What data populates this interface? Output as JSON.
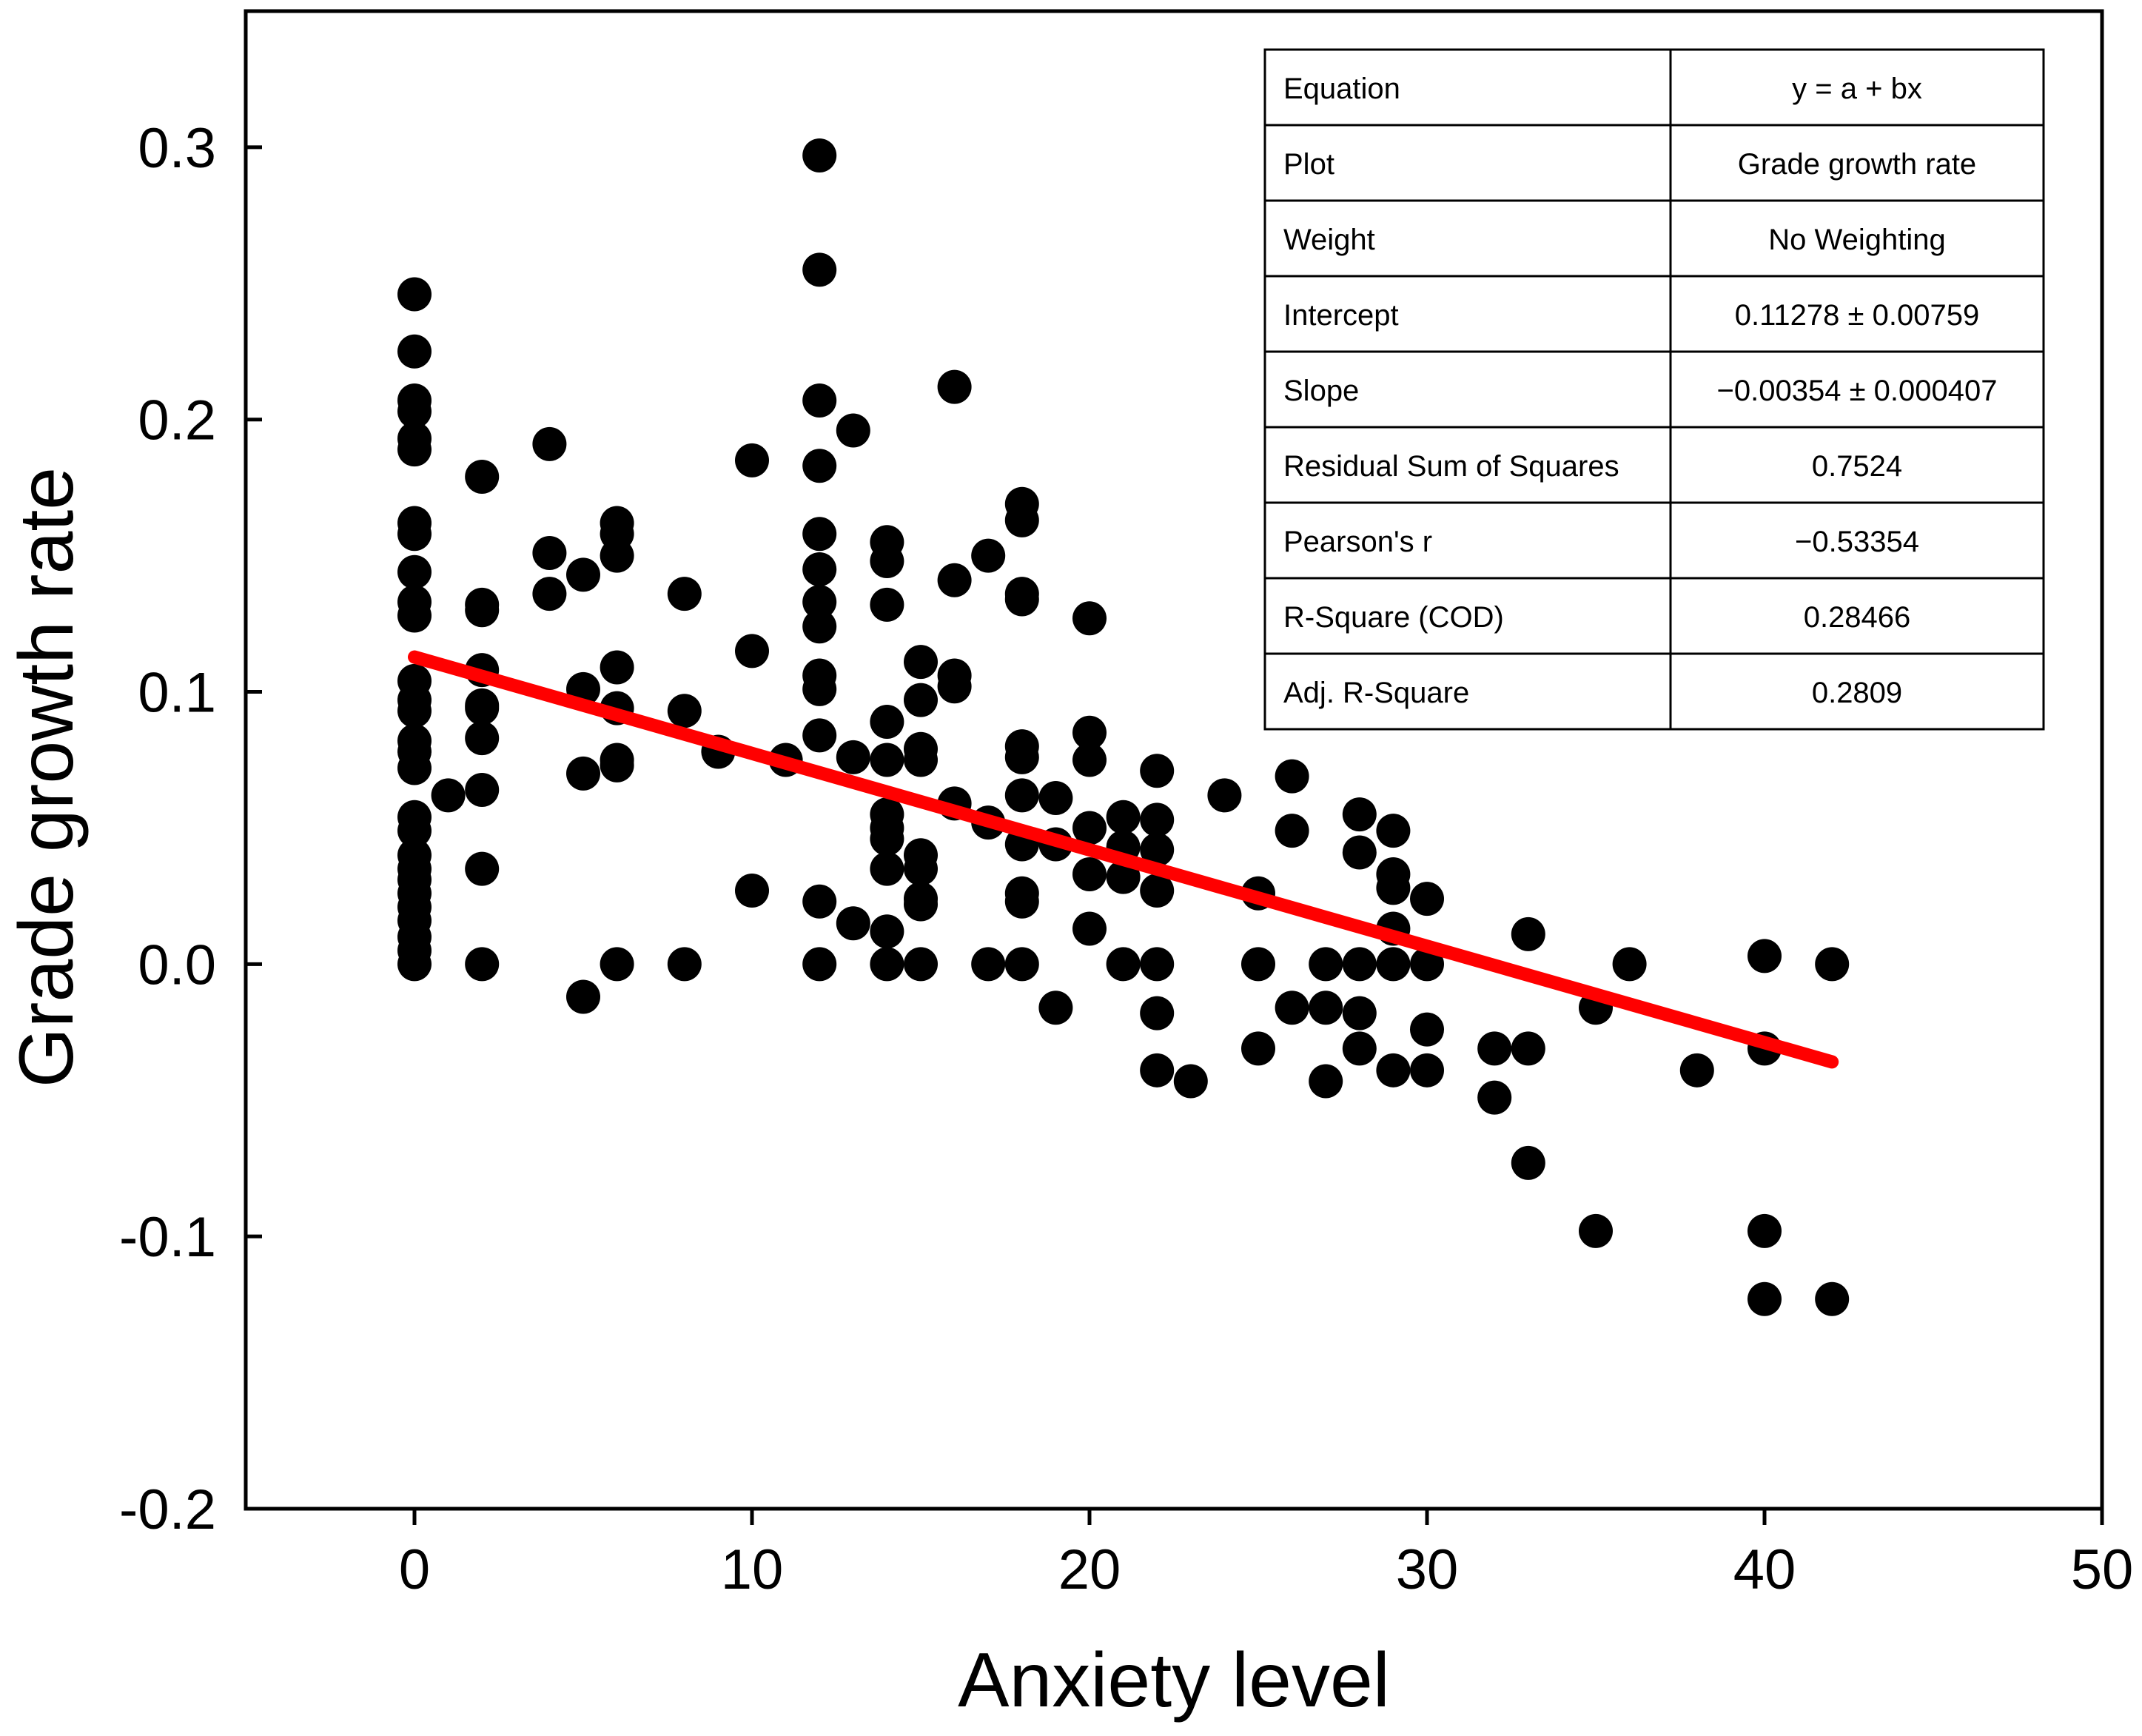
{
  "chart_data": {
    "type": "scatter",
    "xlabel": "Anxiety level",
    "ylabel": "Grade growth rate",
    "xlim": [
      -5,
      50
    ],
    "ylim": [
      -0.2,
      0.35
    ],
    "xticks": [
      "0",
      "10",
      "20",
      "30",
      "40",
      "50"
    ],
    "yticks": [
      "-0.2",
      "-0.1",
      "0.0",
      "0.1",
      "0.2",
      "0.3"
    ],
    "grid": false,
    "marker_color": "#000000",
    "fit_line": {
      "intercept": 0.11278,
      "slope": -0.00354,
      "x_range": [
        0,
        42
      ],
      "color": "#ff0000"
    },
    "stats_table": [
      {
        "label": "Equation",
        "value": "y = a + bx"
      },
      {
        "label": "Plot",
        "value": "Grade growth rate"
      },
      {
        "label": "Weight",
        "value": "No Weighting"
      },
      {
        "label": "Intercept",
        "value": "0.11278 ± 0.00759"
      },
      {
        "label": "Slope",
        "value": "−0.00354 ± 0.000407"
      },
      {
        "label": "Residual Sum of Squares",
        "value": "0.7524"
      },
      {
        "label": "Pearson's r",
        "value": "−0.53354"
      },
      {
        "label": "R-Square (COD)",
        "value": "0.28466"
      },
      {
        "label": "Adj. R-Square",
        "value": "0.2809"
      }
    ],
    "points": [
      [
        0,
        0.246
      ],
      [
        0,
        0.225
      ],
      [
        0,
        0.207
      ],
      [
        0,
        0.203
      ],
      [
        0,
        0.193
      ],
      [
        0,
        0.189
      ],
      [
        0,
        0.162
      ],
      [
        0,
        0.158
      ],
      [
        0,
        0.144
      ],
      [
        0,
        0.133
      ],
      [
        0,
        0.128
      ],
      [
        0,
        0.104
      ],
      [
        0,
        0.097
      ],
      [
        0,
        0.093
      ],
      [
        0,
        0.082
      ],
      [
        0,
        0.078
      ],
      [
        0,
        0.072
      ],
      [
        0,
        0.054
      ],
      [
        0,
        0.049
      ],
      [
        0,
        0.04
      ],
      [
        0,
        0.035
      ],
      [
        0,
        0.031
      ],
      [
        0,
        0.026
      ],
      [
        0,
        0.021
      ],
      [
        0,
        0.016
      ],
      [
        0,
        0.01
      ],
      [
        0,
        0.005
      ],
      [
        0,
        0.0
      ],
      [
        1,
        0.062
      ],
      [
        2,
        0.179
      ],
      [
        2,
        0.132
      ],
      [
        2,
        0.13
      ],
      [
        2,
        0.108
      ],
      [
        2,
        0.095
      ],
      [
        2,
        0.094
      ],
      [
        2,
        0.083
      ],
      [
        2,
        0.064
      ],
      [
        2,
        0.035
      ],
      [
        2,
        0.0
      ],
      [
        4,
        0.191
      ],
      [
        4,
        0.151
      ],
      [
        4,
        0.136
      ],
      [
        5,
        0.143
      ],
      [
        5,
        0.101
      ],
      [
        5,
        0.07
      ],
      [
        5,
        -0.012
      ],
      [
        6,
        0.162
      ],
      [
        6,
        0.158
      ],
      [
        6,
        0.15
      ],
      [
        6,
        0.109
      ],
      [
        6,
        0.094
      ],
      [
        6,
        0.075
      ],
      [
        6,
        0.073
      ],
      [
        6,
        0.0
      ],
      [
        8,
        0.136
      ],
      [
        8,
        0.093
      ],
      [
        8,
        0.0
      ],
      [
        9,
        0.078
      ],
      [
        10,
        0.185
      ],
      [
        10,
        0.115
      ],
      [
        10,
        0.027
      ],
      [
        11,
        0.075
      ],
      [
        12,
        0.297
      ],
      [
        12,
        0.255
      ],
      [
        12,
        0.207
      ],
      [
        12,
        0.183
      ],
      [
        12,
        0.158
      ],
      [
        12,
        0.145
      ],
      [
        12,
        0.133
      ],
      [
        12,
        0.124
      ],
      [
        12,
        0.106
      ],
      [
        12,
        0.101
      ],
      [
        12,
        0.084
      ],
      [
        12,
        0.023
      ],
      [
        12,
        0.0
      ],
      [
        13,
        0.196
      ],
      [
        13,
        0.076
      ],
      [
        13,
        0.015
      ],
      [
        14,
        0.155
      ],
      [
        14,
        0.148
      ],
      [
        14,
        0.132
      ],
      [
        14,
        0.089
      ],
      [
        14,
        0.075
      ],
      [
        14,
        0.055
      ],
      [
        14,
        0.05
      ],
      [
        14,
        0.046
      ],
      [
        14,
        0.035
      ],
      [
        14,
        0.012
      ],
      [
        14,
        0.0
      ],
      [
        15,
        0.111
      ],
      [
        15,
        0.097
      ],
      [
        15,
        0.079
      ],
      [
        15,
        0.075
      ],
      [
        15,
        0.04
      ],
      [
        15,
        0.035
      ],
      [
        15,
        0.024
      ],
      [
        15,
        0.022
      ],
      [
        15,
        0.0
      ],
      [
        16,
        0.212
      ],
      [
        16,
        0.141
      ],
      [
        16,
        0.106
      ],
      [
        16,
        0.102
      ],
      [
        16,
        0.059
      ],
      [
        17,
        0.15
      ],
      [
        17,
        0.052
      ],
      [
        17,
        0.0
      ],
      [
        18,
        0.169
      ],
      [
        18,
        0.163
      ],
      [
        18,
        0.136
      ],
      [
        18,
        0.134
      ],
      [
        18,
        0.08
      ],
      [
        18,
        0.076
      ],
      [
        18,
        0.062
      ],
      [
        18,
        0.044
      ],
      [
        18,
        0.026
      ],
      [
        18,
        0.023
      ],
      [
        18,
        0.0
      ],
      [
        19,
        0.061
      ],
      [
        19,
        0.044
      ],
      [
        19,
        -0.016
      ],
      [
        20,
        0.127
      ],
      [
        20,
        0.085
      ],
      [
        20,
        0.075
      ],
      [
        20,
        0.05
      ],
      [
        20,
        0.033
      ],
      [
        20,
        0.013
      ],
      [
        21,
        0.054
      ],
      [
        21,
        0.043
      ],
      [
        21,
        0.032
      ],
      [
        21,
        0.0
      ],
      [
        22,
        0.071
      ],
      [
        22,
        0.053
      ],
      [
        22,
        0.042
      ],
      [
        22,
        0.027
      ],
      [
        22,
        0.0
      ],
      [
        22,
        -0.018
      ],
      [
        22,
        -0.039
      ],
      [
        23,
        -0.043
      ],
      [
        24,
        0.062
      ],
      [
        25,
        0.026
      ],
      [
        25,
        0.0
      ],
      [
        25,
        -0.031
      ],
      [
        26,
        0.069
      ],
      [
        26,
        0.049
      ],
      [
        26,
        -0.016
      ],
      [
        27,
        0.0
      ],
      [
        27,
        -0.016
      ],
      [
        27,
        -0.043
      ],
      [
        28,
        0.055
      ],
      [
        28,
        0.041
      ],
      [
        28,
        0.0
      ],
      [
        28,
        -0.018
      ],
      [
        28,
        -0.031
      ],
      [
        29,
        0.049
      ],
      [
        29,
        0.033
      ],
      [
        29,
        0.028
      ],
      [
        29,
        0.013
      ],
      [
        29,
        0.0
      ],
      [
        29,
        -0.039
      ],
      [
        30,
        0.024
      ],
      [
        30,
        0.0
      ],
      [
        30,
        -0.024
      ],
      [
        30,
        -0.039
      ],
      [
        32,
        -0.031
      ],
      [
        32,
        -0.049
      ],
      [
        33,
        0.011
      ],
      [
        33,
        -0.031
      ],
      [
        33,
        -0.073
      ],
      [
        35,
        -0.016
      ],
      [
        35,
        -0.098
      ],
      [
        36,
        0.0
      ],
      [
        38,
        -0.039
      ],
      [
        40,
        0.003
      ],
      [
        40,
        -0.031
      ],
      [
        40,
        -0.098
      ],
      [
        40,
        -0.123
      ],
      [
        42,
        0.0
      ],
      [
        42,
        -0.123
      ]
    ]
  }
}
